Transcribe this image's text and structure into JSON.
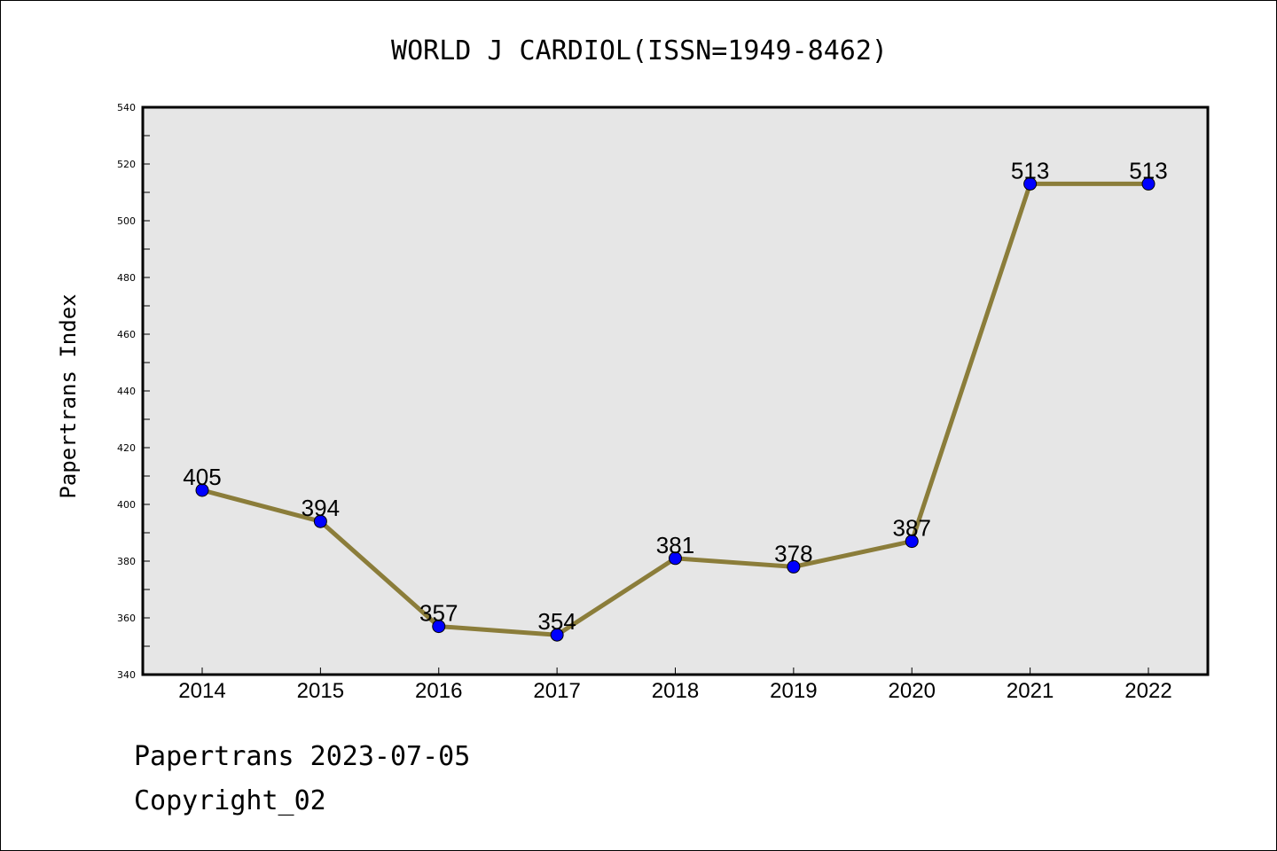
{
  "chart_data": {
    "type": "line",
    "title": "WORLD J CARDIOL(ISSN=1949-8462)",
    "xlabel": "",
    "ylabel": "Papertrans Index",
    "categories": [
      "2014",
      "2015",
      "2016",
      "2017",
      "2018",
      "2019",
      "2020",
      "2021",
      "2022"
    ],
    "series": [
      {
        "values": [
          405,
          394,
          357,
          354,
          381,
          378,
          387,
          513,
          513
        ]
      }
    ],
    "ylim": [
      340,
      540
    ],
    "yticks": [
      340,
      360,
      380,
      400,
      420,
      440,
      460,
      480,
      500,
      520,
      540
    ],
    "grid": false,
    "data_labels": true,
    "colors": {
      "line": "#8b7d3a",
      "marker": "#0000ff",
      "plot_background": "#e6e6e6"
    }
  },
  "footer": {
    "date_line": "Papertrans 2023-07-05",
    "copyright": "Copyright_02"
  }
}
